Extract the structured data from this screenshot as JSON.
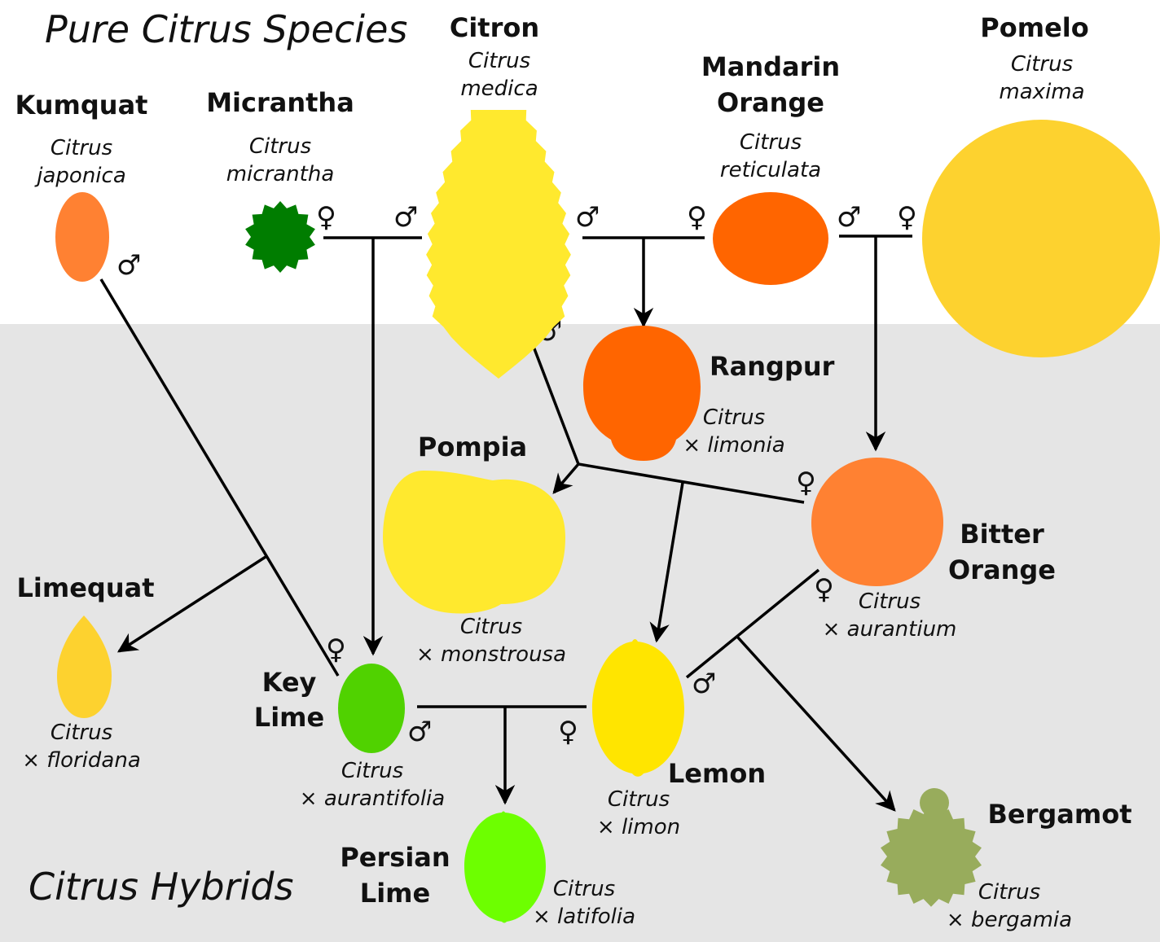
{
  "sections": {
    "pure": "Pure Citrus Species",
    "hybrids": "Citrus Hybrids"
  },
  "symbols": {
    "male": "♂",
    "female": "♀"
  },
  "fruits": {
    "kumquat": {
      "name": [
        "Kumquat"
      ],
      "sci": [
        "Citrus",
        "japonica"
      ],
      "color": "#FF8132"
    },
    "micrantha": {
      "name": [
        "Micrantha"
      ],
      "sci": [
        "Citrus",
        "micrantha"
      ],
      "color": "#007D00"
    },
    "citron": {
      "name": [
        "Citron"
      ],
      "sci": [
        "Citrus",
        "medica"
      ],
      "color": "#FFE92E"
    },
    "mandarin": {
      "name": [
        "Mandarin",
        "Orange"
      ],
      "sci": [
        "Citrus",
        "reticulata"
      ],
      "color": "#FF6500"
    },
    "pomelo": {
      "name": [
        "Pomelo"
      ],
      "sci": [
        "Citrus",
        "maxima"
      ],
      "color": "#FDD22F"
    },
    "rangpur": {
      "name": [
        "Rangpur"
      ],
      "sci": [
        "Citrus",
        "× limonia"
      ],
      "color": "#FF6500"
    },
    "pompia": {
      "name": [
        "Pompia"
      ],
      "sci": [
        "Citrus",
        "× monstrousa"
      ],
      "color": "#FFE92E"
    },
    "bitter": {
      "name": [
        "Bitter",
        "Orange"
      ],
      "sci": [
        "Citrus",
        "× aurantium"
      ],
      "color": "#FF8132"
    },
    "limequat": {
      "name": [
        "Limequat"
      ],
      "sci": [
        "Citrus",
        "× floridana"
      ],
      "color": "#FDD22F"
    },
    "keylime": {
      "name": [
        "Key",
        "Lime"
      ],
      "sci": [
        "Citrus",
        "× aurantifolia"
      ],
      "color": "#50D200"
    },
    "lemon": {
      "name": [
        "Lemon"
      ],
      "sci": [
        "Citrus",
        "× limon"
      ],
      "color": "#FFE500"
    },
    "persian": {
      "name": [
        "Persian",
        "Lime"
      ],
      "sci": [
        "Citrus",
        "× latifolia"
      ],
      "color": "#6DFF00"
    },
    "bergamot": {
      "name": [
        "Bergamot"
      ],
      "sci": [
        "Citrus",
        "× bergamia"
      ],
      "color": "#98AC5C"
    }
  },
  "colors": {
    "hybrid_background": "#E5E5E5"
  }
}
